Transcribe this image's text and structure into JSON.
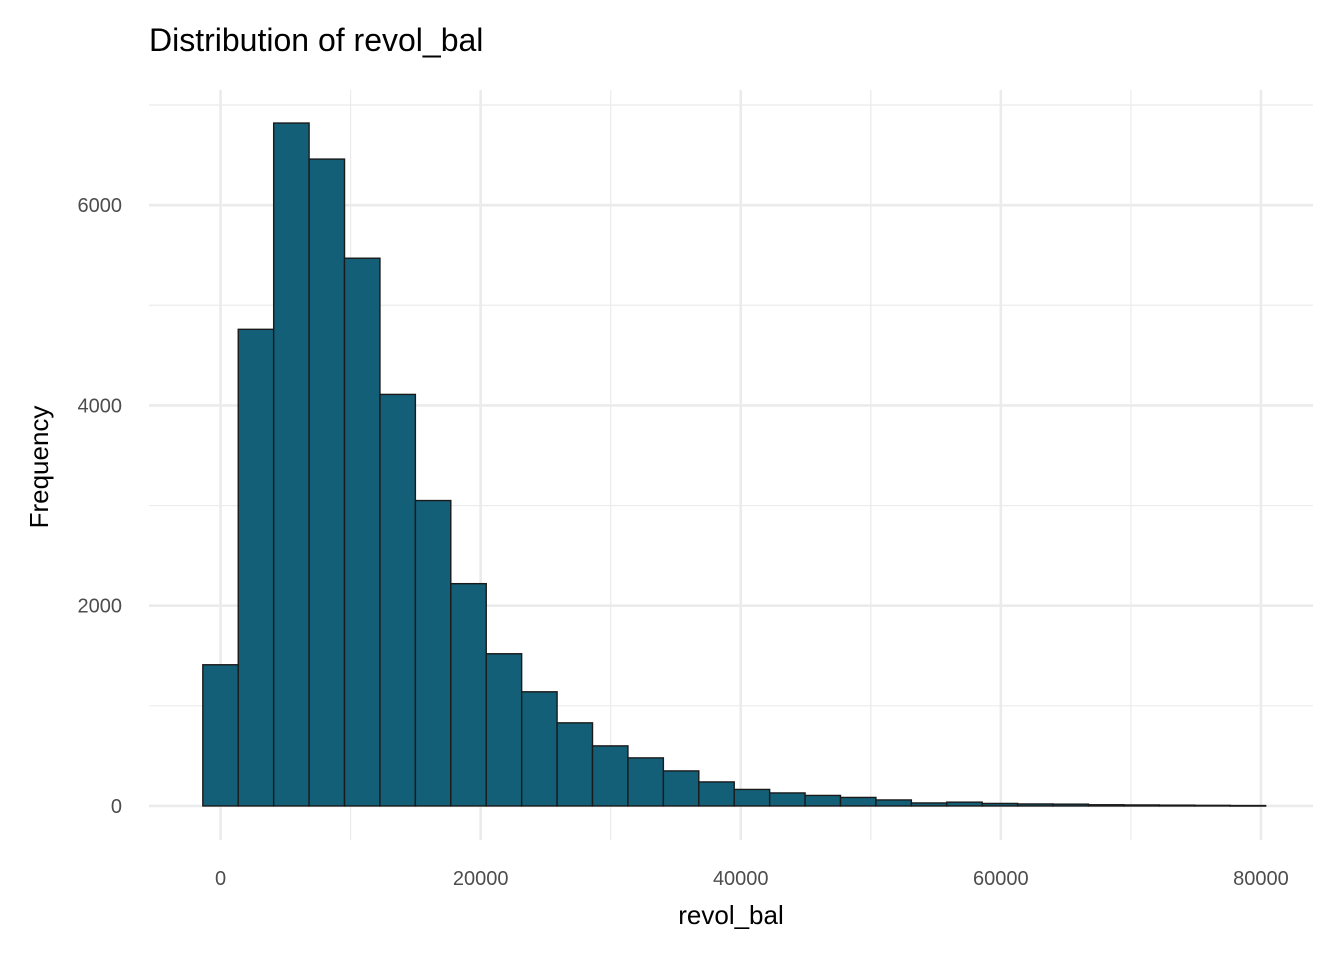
{
  "chart_data": {
    "type": "bar",
    "title": "Distribution of revol_bal",
    "xlabel": "revol_bal",
    "ylabel": "Frequency",
    "bar_fill": "#135f78",
    "bar_outline": "#1a1a1a",
    "grid": true,
    "legend": "none",
    "xlim": [
      -5500,
      84000
    ],
    "ylim": [
      -340,
      7150
    ],
    "x_ticks": [
      0,
      20000,
      40000,
      60000,
      80000
    ],
    "x_tick_labels": [
      "0",
      "20000",
      "40000",
      "60000",
      "80000"
    ],
    "y_ticks": [
      0,
      2000,
      4000,
      6000
    ],
    "y_tick_labels": [
      "0",
      "2000",
      "4000",
      "6000"
    ],
    "bin_width": 2724,
    "bin_start": -1362,
    "values": [
      1410,
      4760,
      6820,
      6460,
      5470,
      4110,
      3050,
      2220,
      1520,
      1140,
      830,
      600,
      480,
      350,
      240,
      165,
      130,
      105,
      85,
      60,
      30,
      38,
      25,
      20,
      18,
      12,
      10,
      8,
      6,
      4
    ]
  }
}
